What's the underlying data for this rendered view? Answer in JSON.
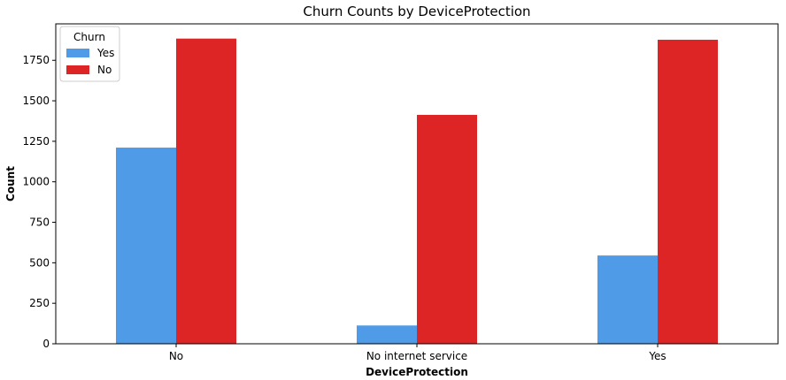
{
  "chart_data": {
    "type": "bar",
    "title": "Churn Counts by DeviceProtection",
    "xlabel": "DeviceProtection",
    "ylabel": "Count",
    "categories": [
      "No",
      "No internet service",
      "Yes"
    ],
    "series": [
      {
        "name": "Yes",
        "color": "#4f9be8",
        "values": [
          1211,
          113,
          545
        ]
      },
      {
        "name": "No",
        "color": "#de2525",
        "values": [
          1884,
          1413,
          1877
        ]
      }
    ],
    "ylim": [
      0,
      1975
    ],
    "yticks": [
      0,
      250,
      500,
      750,
      1000,
      1250,
      1500,
      1750
    ],
    "grid": false,
    "legend": {
      "title": "Churn",
      "position": "top-left"
    }
  }
}
